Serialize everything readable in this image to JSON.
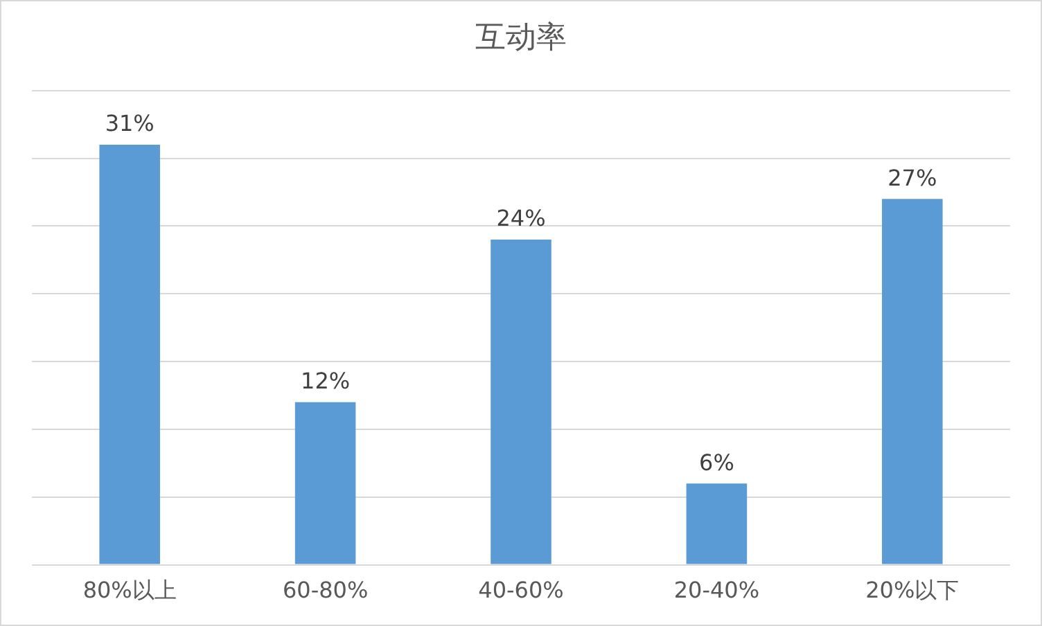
{
  "chart_data": {
    "type": "bar",
    "title": "互动率",
    "categories": [
      "80%以上",
      "60-80%",
      "40-60%",
      "20-40%",
      "20%以下"
    ],
    "values": [
      31,
      12,
      24,
      6,
      27
    ],
    "color": "#5b9bd5",
    "value_labels": [
      "31%",
      "12%",
      "24%",
      "6%",
      "27%"
    ],
    "ylim": [
      0,
      35
    ],
    "yticks": [
      {
        "value": 0,
        "label": null
      },
      {
        "value": 5,
        "label": null
      },
      {
        "value": 10,
        "label": null
      },
      {
        "value": 15,
        "label": null
      },
      {
        "value": 20,
        "label": null
      },
      {
        "value": 25,
        "label": null
      },
      {
        "value": 30,
        "label": null
      },
      {
        "value": 35,
        "label": null
      }
    ],
    "grid": "y",
    "tick_labels": "x",
    "legend": false
  }
}
